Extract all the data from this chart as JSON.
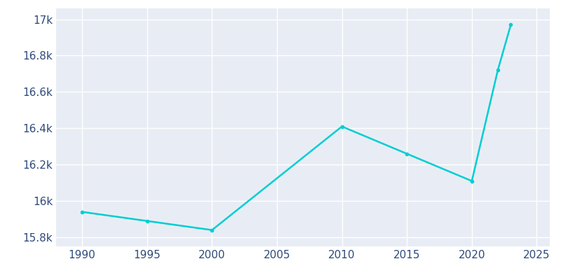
{
  "years": [
    1990,
    1995,
    2000,
    2010,
    2015,
    2020,
    2022,
    2023
  ],
  "population": [
    15940,
    15890,
    15840,
    16410,
    16260,
    16110,
    16720,
    16970
  ],
  "line_color": "#00CED1",
  "marker": "o",
  "marker_size": 3,
  "line_width": 1.8,
  "background_color": "#E8EDF5",
  "plot_bg_color": "#E8EDF5",
  "fig_bg_color": "#FFFFFF",
  "grid_color": "#FFFFFF",
  "tick_color": "#2E4A7A",
  "xlim": [
    1988,
    2026
  ],
  "ylim": [
    15750,
    17060
  ],
  "xticks": [
    1990,
    1995,
    2000,
    2005,
    2010,
    2015,
    2020,
    2025
  ],
  "ytick_labels": [
    "15.8k",
    "16k",
    "16.2k",
    "16.4k",
    "16.6k",
    "16.8k",
    "17k"
  ],
  "ytick_values": [
    15800,
    16000,
    16200,
    16400,
    16600,
    16800,
    17000
  ],
  "tick_fontsize": 11
}
